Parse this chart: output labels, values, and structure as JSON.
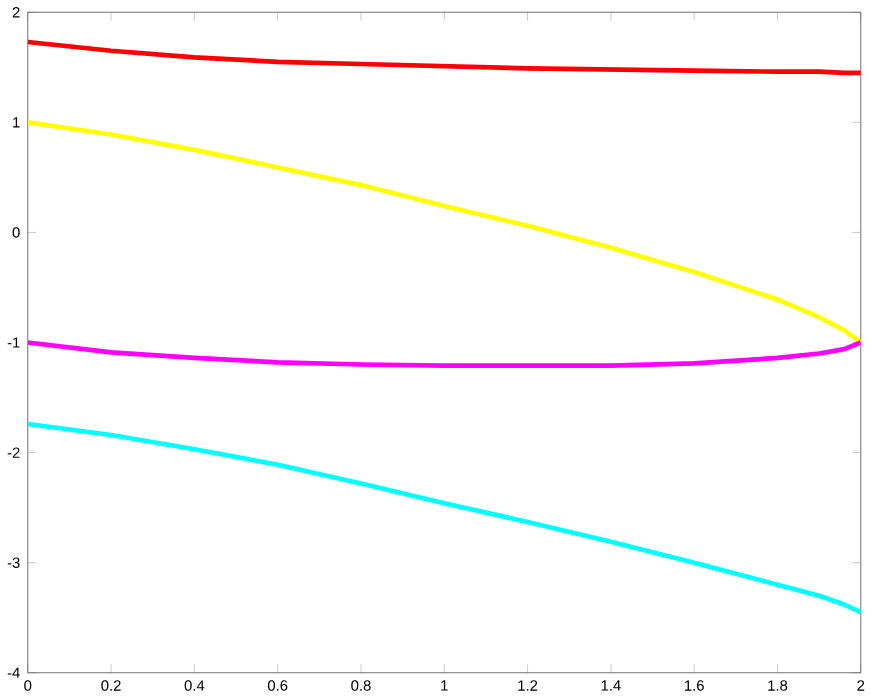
{
  "chart_data": {
    "type": "line",
    "x": [
      0,
      0.2,
      0.4,
      0.6,
      0.8,
      1.0,
      1.2,
      1.4,
      1.6,
      1.8,
      1.9,
      1.96,
      2.0
    ],
    "series": [
      {
        "color": "#ff0000",
        "values": [
          1.73,
          1.65,
          1.59,
          1.55,
          1.53,
          1.51,
          1.49,
          1.48,
          1.47,
          1.46,
          1.46,
          1.45,
          1.45
        ]
      },
      {
        "color": "#ffff00",
        "values": [
          1.0,
          0.89,
          0.75,
          0.59,
          0.43,
          0.24,
          0.06,
          -0.14,
          -0.36,
          -0.61,
          -0.77,
          -0.89,
          -1.0
        ]
      },
      {
        "color": "#ff00ff",
        "values": [
          -1.0,
          -1.09,
          -1.14,
          -1.18,
          -1.2,
          -1.21,
          -1.21,
          -1.21,
          -1.19,
          -1.14,
          -1.1,
          -1.06,
          -1.0
        ]
      },
      {
        "color": "#00ffff",
        "values": [
          -1.74,
          -1.84,
          -1.97,
          -2.11,
          -2.28,
          -2.46,
          -2.63,
          -2.81,
          -3.0,
          -3.2,
          -3.3,
          -3.38,
          -3.45
        ]
      }
    ],
    "xlim": [
      0,
      2
    ],
    "ylim": [
      -4,
      2
    ],
    "xticks": [
      0,
      0.2,
      0.4,
      0.6,
      0.8,
      1,
      1.2,
      1.4,
      1.6,
      1.8,
      2
    ],
    "yticks": [
      -4,
      -3,
      -2,
      -1,
      0,
      1,
      2
    ],
    "grid": false,
    "marker": "none",
    "line_style": "solid"
  }
}
